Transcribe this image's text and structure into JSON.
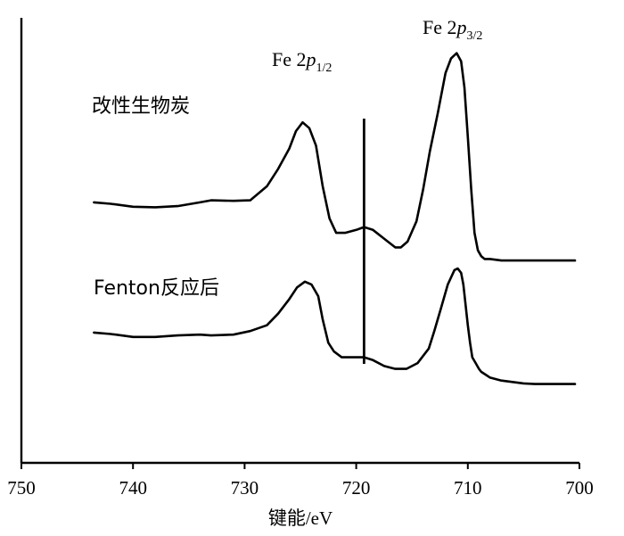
{
  "chart_data": {
    "type": "line",
    "xlabel": "键能/eV",
    "xlim": [
      750,
      700
    ],
    "x_reversed": true,
    "x_ticks": [
      750,
      740,
      730,
      720,
      710,
      700
    ],
    "grid": false,
    "y_ticks_shown": false,
    "reference_line_x": 719.3,
    "series": [
      {
        "name": "改性生物炭",
        "x": [
          743.5,
          742,
          740,
          738,
          736,
          734,
          733,
          731,
          729.5,
          728,
          727,
          726,
          725.4,
          724.8,
          724.2,
          723.6,
          723,
          722.4,
          721.8,
          721,
          720,
          719.3,
          718.5,
          717.5,
          716.5,
          716,
          715.4,
          714.6,
          714,
          713.4,
          712.7,
          712,
          711.5,
          711,
          710.6,
          710.3,
          710,
          709.7,
          709.4,
          709.1,
          708.8,
          708.5,
          708,
          707,
          706,
          705,
          704,
          703,
          702,
          701,
          700.4
        ],
        "y": [
          0.255,
          0.25,
          0.24,
          0.238,
          0.242,
          0.255,
          0.262,
          0.26,
          0.262,
          0.31,
          0.37,
          0.44,
          0.5,
          0.53,
          0.51,
          0.45,
          0.31,
          0.2,
          0.15,
          0.15,
          0.16,
          0.17,
          0.16,
          0.13,
          0.1,
          0.1,
          0.12,
          0.19,
          0.3,
          0.43,
          0.56,
          0.7,
          0.75,
          0.768,
          0.74,
          0.65,
          0.48,
          0.3,
          0.15,
          0.09,
          0.07,
          0.06,
          0.06,
          0.055,
          0.055,
          0.055,
          0.055,
          0.055,
          0.055,
          0.055,
          0.055
        ]
      },
      {
        "name": "Fenton反应后",
        "x": [
          743.5,
          742,
          740,
          738,
          736,
          734,
          733,
          731,
          729.5,
          728,
          727,
          726,
          725.3,
          724.6,
          724,
          723.4,
          723,
          722.5,
          722,
          721.3,
          720,
          719.3,
          718.5,
          717.5,
          716.5,
          715.5,
          714.5,
          713.5,
          713,
          712.4,
          711.8,
          711.2,
          710.9,
          710.6,
          710.4,
          710.2,
          710,
          709.8,
          709.6,
          709.3,
          709,
          708.8,
          708.4,
          708,
          707,
          706,
          705,
          704,
          703,
          702,
          701,
          700.4
        ],
        "y": [
          0.255,
          0.25,
          0.24,
          0.24,
          0.245,
          0.248,
          0.245,
          0.248,
          0.26,
          0.28,
          0.32,
          0.37,
          0.41,
          0.43,
          0.42,
          0.38,
          0.3,
          0.22,
          0.19,
          0.17,
          0.17,
          0.17,
          0.16,
          0.14,
          0.13,
          0.13,
          0.15,
          0.2,
          0.26,
          0.34,
          0.42,
          0.47,
          0.475,
          0.46,
          0.42,
          0.35,
          0.28,
          0.22,
          0.17,
          0.15,
          0.13,
          0.12,
          0.11,
          0.1,
          0.09,
          0.085,
          0.08,
          0.078,
          0.078,
          0.078,
          0.078,
          0.078
        ]
      }
    ],
    "peak_labels": [
      {
        "prefix": "Fe 2",
        "italic": "p",
        "subscript": "1/2"
      },
      {
        "prefix": "Fe 2",
        "italic": "p",
        "subscript": "3/2"
      }
    ]
  }
}
